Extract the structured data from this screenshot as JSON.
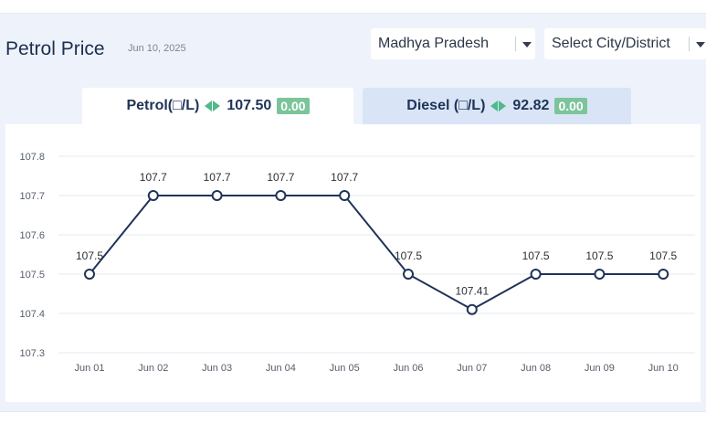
{
  "header": {
    "title": "Petrol Price",
    "date": "Jun 10, 2025",
    "state_select": "Madhya Pradesh",
    "city_select": "Select City/District"
  },
  "tabs": {
    "petrol": {
      "label": "Petrol(□/L)",
      "price": "107.50",
      "change": "0.00"
    },
    "diesel": {
      "label": "Diesel (□/L)",
      "price": "92.82",
      "change": "0.00"
    }
  },
  "colors": {
    "line": "#1f3358",
    "grid": "#e6e9ee",
    "arrow": "#4fb98a",
    "badge": "#7cc49a"
  },
  "chart_data": {
    "type": "line",
    "categories": [
      "Jun 01",
      "Jun 02",
      "Jun 03",
      "Jun 04",
      "Jun 05",
      "Jun 06",
      "Jun 07",
      "Jun 08",
      "Jun 09",
      "Jun 10"
    ],
    "series": [
      {
        "values": [
          107.5,
          107.7,
          107.7,
          107.7,
          107.7,
          107.5,
          107.41,
          107.5,
          107.5,
          107.5
        ]
      }
    ],
    "data_labels": [
      "107.5",
      "107.7",
      "107.7",
      "107.7",
      "107.7",
      "107.5",
      "107.41",
      "107.5",
      "107.5",
      "107.5"
    ],
    "y_ticks": [
      "107.3",
      "107.4",
      "107.5",
      "107.6",
      "107.7",
      "107.8"
    ],
    "ylim": [
      107.3,
      107.8
    ],
    "grid": true
  }
}
